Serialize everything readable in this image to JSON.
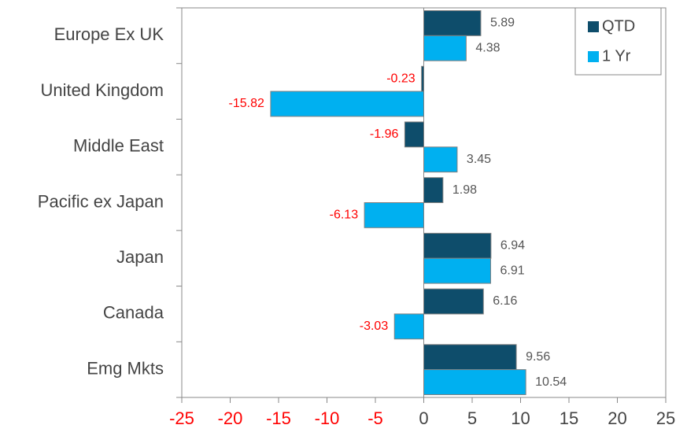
{
  "chart_data": {
    "type": "hbar",
    "categories": [
      "Europe Ex UK",
      "United Kingdom",
      "Middle East",
      "Pacific ex Japan",
      "Japan",
      "Canada",
      "Emg Mkts"
    ],
    "series": [
      {
        "name": "QTD",
        "color": "#0e4d6b",
        "values": [
          5.89,
          -0.23,
          -1.96,
          1.98,
          6.94,
          6.16,
          9.56
        ]
      },
      {
        "name": "1 Yr",
        "color": "#00b0f0",
        "values": [
          4.38,
          -15.82,
          3.45,
          -6.13,
          6.91,
          -3.03,
          10.54
        ]
      }
    ],
    "xlim": [
      -25,
      25
    ],
    "xticks": [
      -25,
      -20,
      -15,
      -10,
      -5,
      0,
      5,
      10,
      15,
      20,
      25
    ],
    "negative_color": "#ff0000",
    "legend": "upper right"
  }
}
